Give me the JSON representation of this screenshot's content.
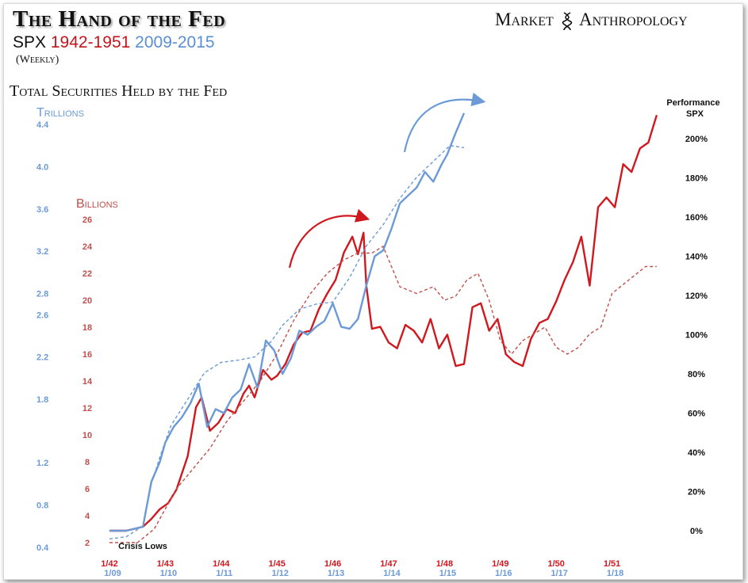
{
  "header": {
    "title": "The Hand of the Fed",
    "subtitle_spx": "SPX",
    "subtitle_red": "1942-1951",
    "subtitle_blue": "2009-2015",
    "weekly": "(Weekly)",
    "brand_left": "Market",
    "brand_right": "Anthropology",
    "section": "Total Securities Held by the Fed"
  },
  "colors": {
    "spx_1942_1951": "#d0181f",
    "spx_2009_2015": "#6b9ad6",
    "fed_billions": "#c0504d",
    "fed_trillions": "#6b9ad6",
    "arrow_red": "#d0181f",
    "arrow_blue": "#6b9ad6"
  },
  "chart_data": {
    "type": "line",
    "axes": {
      "left_outer": {
        "label": "Trillions",
        "ticks": [
          "0.4",
          "0.8",
          "1.2",
          "1.8",
          "2.2",
          "2.6",
          "2.8",
          "3.2",
          "3.6",
          "4.0",
          "4.4"
        ],
        "values": [
          0.4,
          0.8,
          1.2,
          1.8,
          2.2,
          2.6,
          2.8,
          3.2,
          3.6,
          4.0,
          4.4
        ]
      },
      "left_inner": {
        "label": "Billions",
        "ticks": [
          "2",
          "4",
          "6",
          "8",
          "10",
          "12",
          "14",
          "16",
          "18",
          "20",
          "22",
          "24",
          "26"
        ],
        "values": [
          2,
          4,
          6,
          8,
          10,
          12,
          14,
          16,
          18,
          20,
          22,
          24,
          26
        ]
      },
      "right": {
        "label": "Performance SPX",
        "label_line1": "Performance",
        "label_line2": "SPX",
        "ticks": [
          "0%",
          "20%",
          "40%",
          "60%",
          "80%",
          "100%",
          "120%",
          "140%",
          "160%",
          "180%",
          "200%"
        ],
        "values": [
          0,
          20,
          40,
          60,
          80,
          100,
          120,
          140,
          160,
          180,
          200
        ],
        "ylim": [
          -10,
          220
        ]
      },
      "x_top": {
        "ticks": [
          "1/42",
          "1/43",
          "1/44",
          "1/45",
          "1/46",
          "1/47",
          "1/48",
          "1/49",
          "1/50",
          "1/51"
        ]
      },
      "x_bottom": {
        "ticks": [
          "1/09",
          "1/10",
          "1/11",
          "1/12",
          "1/13",
          "1/14",
          "1/15",
          "1/16",
          "1/17",
          "1/18"
        ]
      },
      "xlim": [
        0,
        10
      ],
      "grid": false
    },
    "annotations": [
      "Crisis Lows"
    ],
    "series": [
      {
        "name": "SPX 1942-1951",
        "style": "solid",
        "x": [
          0,
          0.3,
          0.6,
          0.75,
          0.9,
          1.05,
          1.2,
          1.4,
          1.55,
          1.65,
          1.8,
          1.95,
          2.1,
          2.25,
          2.4,
          2.5,
          2.6,
          2.75,
          2.9,
          3.0,
          3.15,
          3.3,
          3.45,
          3.6,
          3.75,
          3.9,
          4.05,
          4.2,
          4.35,
          4.45,
          4.55,
          4.6,
          4.7,
          4.85,
          5.0,
          5.15,
          5.3,
          5.45,
          5.6,
          5.75,
          5.9,
          6.05,
          6.2,
          6.35,
          6.5,
          6.65,
          6.8,
          6.95,
          7.1,
          7.25,
          7.4,
          7.55,
          7.7,
          7.85,
          8.0,
          8.15,
          8.3,
          8.45,
          8.6,
          8.75,
          8.9,
          9.05,
          9.2,
          9.35,
          9.5,
          9.65,
          9.8
        ],
        "values": [
          0,
          0,
          2,
          6,
          11,
          14,
          21,
          38,
          63,
          68,
          51,
          55,
          62,
          60,
          70,
          74,
          68,
          82,
          77,
          79,
          85,
          95,
          101,
          102,
          113,
          121,
          128,
          142,
          150,
          141,
          152,
          125,
          103,
          104,
          96,
          93,
          105,
          102,
          96,
          108,
          93,
          100,
          84,
          85,
          114,
          116,
          102,
          108,
          90,
          86,
          84,
          98,
          106,
          108,
          117,
          128,
          137,
          150,
          125,
          165,
          170,
          165,
          187,
          183,
          195,
          198,
          212
        ]
      },
      {
        "name": "SPX 2009-2015",
        "style": "solid",
        "x": [
          0,
          0.3,
          0.6,
          0.75,
          0.9,
          1.0,
          1.15,
          1.3,
          1.45,
          1.6,
          1.75,
          1.9,
          2.05,
          2.2,
          2.35,
          2.5,
          2.65,
          2.8,
          2.95,
          3.1,
          3.25,
          3.4,
          3.55,
          3.7,
          3.85,
          4.0,
          4.15,
          4.3,
          4.45,
          4.6,
          4.75,
          4.9,
          5.05,
          5.2,
          5.35,
          5.5,
          5.65,
          5.8,
          5.95,
          6.05,
          6.2,
          6.35
        ],
        "values": [
          0,
          0,
          2,
          25,
          35,
          45,
          53,
          58,
          65,
          75,
          53,
          62,
          60,
          68,
          72,
          85,
          73,
          97,
          92,
          80,
          88,
          102,
          100,
          104,
          107,
          116,
          104,
          103,
          108,
          125,
          140,
          143,
          154,
          167,
          171,
          175,
          183,
          178,
          187,
          192,
          203,
          213
        ]
      },
      {
        "name": "Fed Securities (Billions)",
        "style": "dashed",
        "x": [
          0,
          0.5,
          0.8,
          1.0,
          1.2,
          1.5,
          1.8,
          2.1,
          2.4,
          2.7,
          3.0,
          3.3,
          3.6,
          3.9,
          4.2,
          4.45,
          4.7,
          4.9,
          5.2,
          5.5,
          5.8,
          6.0,
          6.2,
          6.4,
          6.6,
          6.8,
          7.0,
          7.2,
          7.4,
          7.6,
          7.8,
          8.0,
          8.2,
          8.4,
          8.6,
          8.8,
          9.0,
          9.3,
          9.6,
          9.8
        ],
        "values": [
          2,
          2,
          3,
          4.5,
          6,
          7.5,
          9,
          11,
          12.5,
          14,
          16,
          18.5,
          20.5,
          22,
          23,
          23.5,
          23.5,
          24,
          21,
          20.5,
          21,
          20,
          20.3,
          21.5,
          22,
          20,
          17,
          16,
          17,
          17.5,
          18,
          16.5,
          16,
          16.5,
          17.5,
          18,
          20.5,
          21.5,
          22.5,
          22.5
        ]
      },
      {
        "name": "Fed Securities (Trillions)",
        "style": "dashed",
        "x": [
          0,
          0.3,
          0.6,
          0.75,
          0.9,
          1.1,
          1.4,
          1.7,
          2.0,
          2.3,
          2.6,
          2.9,
          3.1,
          3.4,
          3.7,
          4.0,
          4.3,
          4.6,
          4.9,
          5.2,
          5.5,
          5.8,
          6.1,
          6.35
        ],
        "values": [
          0.48,
          0.5,
          0.6,
          1.0,
          1.25,
          1.55,
          1.8,
          2.05,
          2.15,
          2.17,
          2.2,
          2.35,
          2.5,
          2.65,
          2.7,
          2.72,
          2.95,
          3.25,
          3.45,
          3.7,
          3.9,
          4.05,
          4.2,
          4.18
        ]
      }
    ]
  }
}
